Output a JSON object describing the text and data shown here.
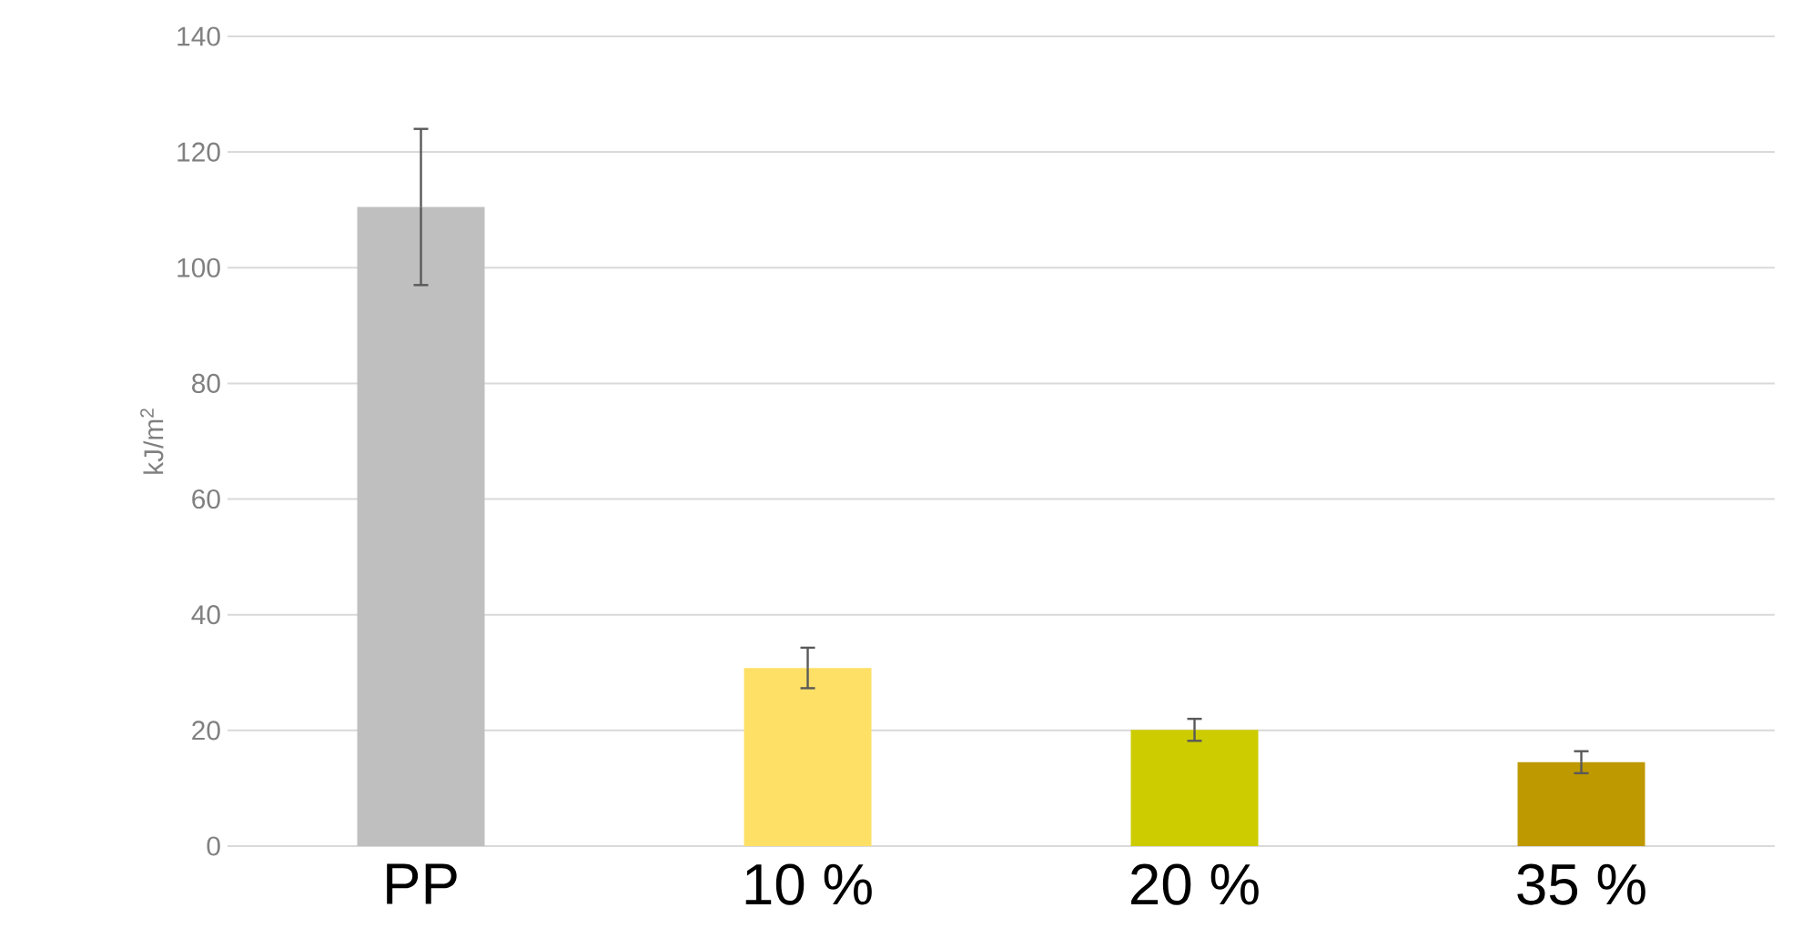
{
  "chart_data": {
    "type": "bar",
    "ylabel": "kJ/m$^{2}$",
    "categories": [
      "PP",
      "10 %",
      "20 %",
      "35 %"
    ],
    "values": [
      110.5,
      30.8,
      20.1,
      14.5
    ],
    "errors": [
      13.5,
      3.5,
      1.9,
      1.9
    ],
    "colors": [
      "#bfbfbf",
      "#ffe066",
      "#cccc00",
      "#bf9900"
    ],
    "ylim": [
      0,
      140
    ],
    "yticks": [
      0,
      20,
      40,
      60,
      80,
      100,
      120,
      140
    ],
    "grid": "y"
  }
}
